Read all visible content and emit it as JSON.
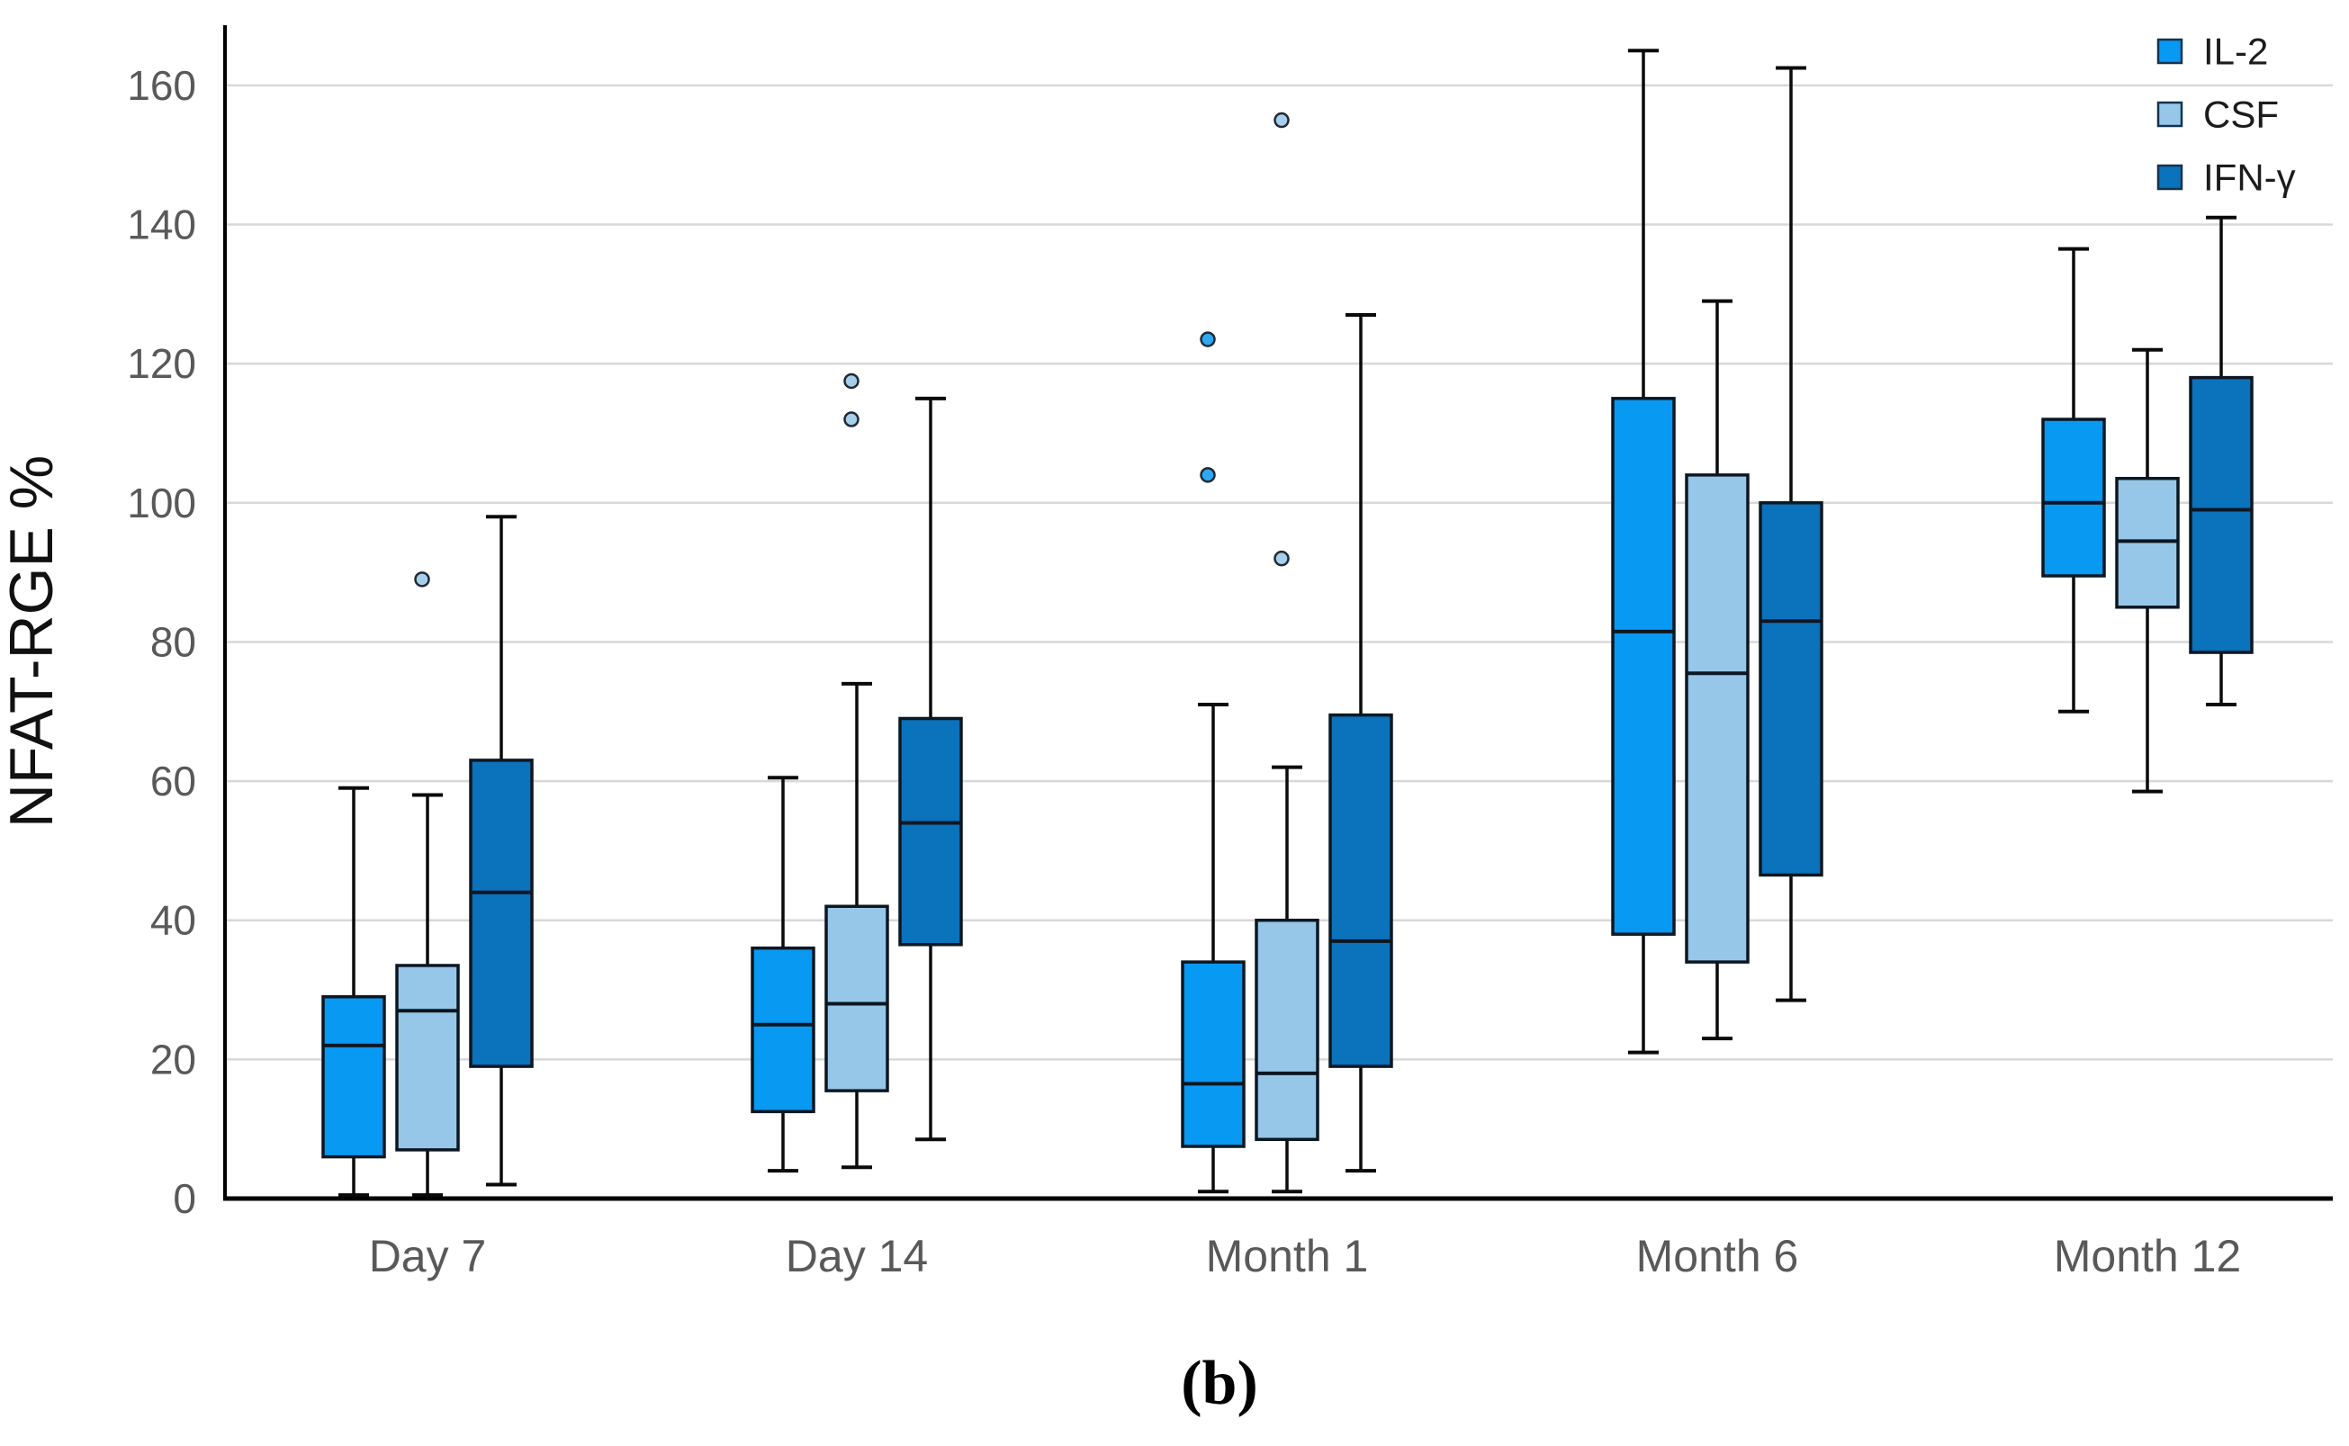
{
  "caption": "(b)",
  "colors": {
    "il2": "#0899f2",
    "csf": "#96c7e8",
    "ifng": "#0b72bc",
    "box_stroke": "#0c1722",
    "whisker": "#0a0a0a",
    "axis": "#000000",
    "grid": "#d8d8d8",
    "tick_text": "#595959",
    "legend_text": "#1c1c1c",
    "ylabel_text": "#111111"
  },
  "chart_data": {
    "type": "boxplot",
    "title": "",
    "xlabel": "",
    "ylabel": "NFAT-RGE %",
    "ylim": [
      0,
      170
    ],
    "yticks": [
      0,
      20,
      40,
      60,
      80,
      100,
      120,
      140,
      160
    ],
    "grid": true,
    "legend_position": "top-right",
    "categories": [
      "Day 7",
      "Day 14",
      "Month 1",
      "Month 6",
      "Month 12"
    ],
    "series": [
      {
        "name": "IL-2",
        "color": "#0899f2",
        "boxes": [
          {
            "min": 0.5,
            "q1": 6,
            "med": 22,
            "q3": 29,
            "max": 59,
            "outliers": []
          },
          {
            "min": 4,
            "q1": 12.5,
            "med": 25,
            "q3": 36,
            "max": 60.5,
            "outliers": []
          },
          {
            "min": 1,
            "q1": 7.5,
            "med": 16.5,
            "q3": 34,
            "max": 71,
            "outliers": [
              104,
              123.5
            ]
          },
          {
            "min": 21,
            "q1": 38,
            "med": 81.5,
            "q3": 115,
            "max": 165,
            "outliers": []
          },
          {
            "min": 70,
            "q1": 89.5,
            "med": 100,
            "q3": 112,
            "max": 136.5,
            "outliers": []
          }
        ]
      },
      {
        "name": "CSF",
        "color": "#96c7e8",
        "boxes": [
          {
            "min": 0.5,
            "q1": 7,
            "med": 27,
            "q3": 33.5,
            "max": 58,
            "outliers": [
              89
            ]
          },
          {
            "min": 4.5,
            "q1": 15.5,
            "med": 28,
            "q3": 42,
            "max": 74,
            "outliers": [
              112,
              117.5
            ]
          },
          {
            "min": 1,
            "q1": 8.5,
            "med": 18,
            "q3": 40,
            "max": 62,
            "outliers": [
              92,
              155
            ]
          },
          {
            "min": 23,
            "q1": 34,
            "med": 75.5,
            "q3": 104,
            "max": 129,
            "outliers": []
          },
          {
            "min": 58.5,
            "q1": 85,
            "med": 94.5,
            "q3": 103.5,
            "max": 122,
            "outliers": []
          }
        ]
      },
      {
        "name": "IFN-γ",
        "color": "#0b72bc",
        "boxes": [
          {
            "min": 2,
            "q1": 19,
            "med": 44,
            "q3": 63,
            "max": 98,
            "outliers": []
          },
          {
            "min": 8.5,
            "q1": 36.5,
            "med": 54,
            "q3": 69,
            "max": 115,
            "outliers": []
          },
          {
            "min": 4,
            "q1": 19,
            "med": 37,
            "q3": 69.5,
            "max": 127,
            "outliers": []
          },
          {
            "min": 28.5,
            "q1": 46.5,
            "med": 83,
            "q3": 100,
            "max": 162.5,
            "outliers": []
          },
          {
            "min": 71,
            "q1": 78.5,
            "med": 99,
            "q3": 118,
            "max": 141,
            "outliers": []
          }
        ]
      }
    ]
  }
}
